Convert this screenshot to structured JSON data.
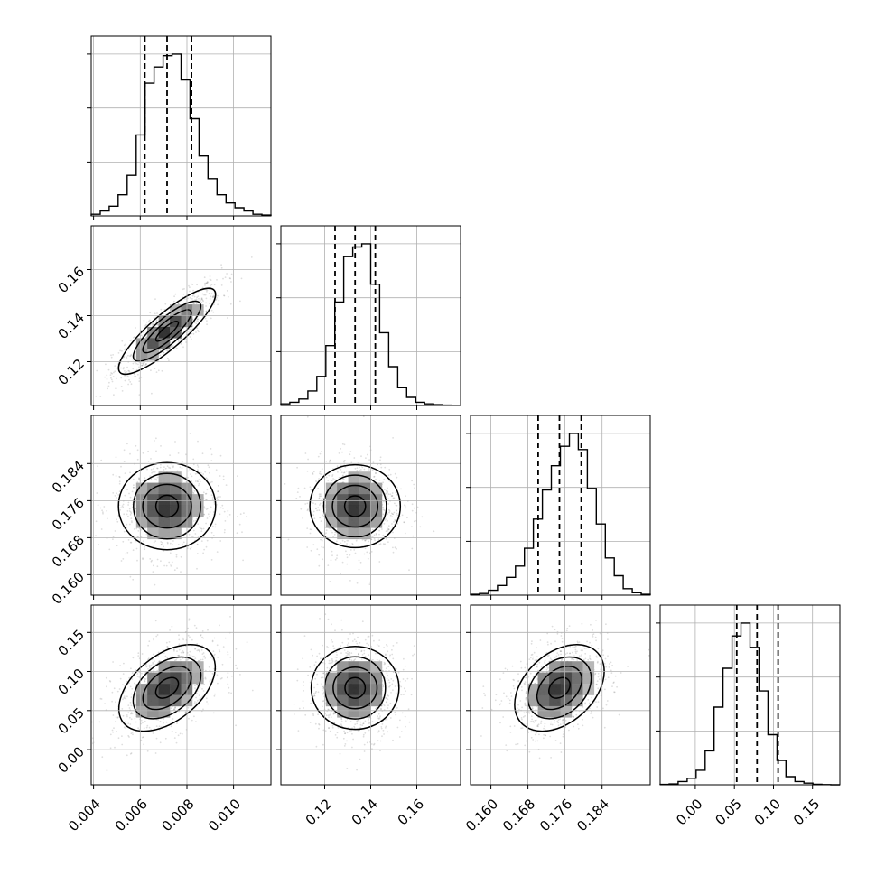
{
  "chart_data": {
    "type": "corner",
    "grid": true,
    "n_params": 4,
    "params": [
      {
        "range": [
          0.0039,
          0.0116
        ],
        "ticks": [
          0.004,
          0.006,
          0.008,
          0.01
        ],
        "tick_labels": [
          "0.004",
          "0.006",
          "0.008",
          "0.010"
        ],
        "quantiles": [
          0.0062,
          0.00715,
          0.0082
        ]
      },
      {
        "range": [
          0.101,
          0.179
        ],
        "ticks": [
          0.12,
          0.14,
          0.16
        ],
        "tick_labels": [
          "0.12",
          "0.14",
          "0.16"
        ],
        "quantiles": [
          0.1245,
          0.1332,
          0.142
        ]
      },
      {
        "range": [
          0.1556,
          0.1944
        ],
        "ticks": [
          0.16,
          0.168,
          0.176,
          0.184
        ],
        "tick_labels": [
          "0.160",
          "0.168",
          "0.176",
          "0.184"
        ],
        "quantiles": [
          0.1702,
          0.1748,
          0.1795
        ]
      },
      {
        "range": [
          -0.045,
          0.185
        ],
        "ticks": [
          0.0,
          0.05,
          0.1,
          0.15
        ],
        "tick_labels": [
          "0.00",
          "0.05",
          "0.10",
          "0.15"
        ],
        "quantiles": [
          0.053,
          0.079,
          0.106
        ]
      }
    ],
    "marginal_histograms": [
      {
        "param": 0,
        "counts": [
          1,
          3,
          6,
          13,
          25,
          50,
          82,
          92,
          99,
          100,
          84,
          60,
          37,
          23,
          13,
          8,
          5,
          3,
          1,
          0.5
        ]
      },
      {
        "param": 1,
        "counts": [
          1,
          2,
          4,
          9,
          18,
          37,
          64,
          92,
          98,
          100,
          75,
          45,
          24,
          11,
          5,
          2,
          1,
          0.5,
          0.2,
          0.1
        ]
      },
      {
        "param": 2,
        "counts": [
          0.5,
          1,
          3,
          6,
          11,
          18,
          29,
          47,
          65,
          80,
          92,
          100,
          90,
          66,
          44,
          23,
          12,
          4,
          1.5,
          0.5
        ]
      },
      {
        "param": 3,
        "counts": [
          0.2,
          0.5,
          2,
          4,
          9,
          21,
          48,
          72,
          92,
          100,
          85,
          58,
          31,
          15,
          5,
          2,
          1,
          0.3,
          0.1,
          0
        ]
      }
    ],
    "pair_summaries": [
      {
        "x_param": 0,
        "y_param": 1,
        "mean": [
          0.00715,
          0.1332
        ],
        "sd": [
          0.001,
          0.009
        ],
        "correlation": 0.85
      },
      {
        "x_param": 0,
        "y_param": 2,
        "mean": [
          0.00715,
          0.1748
        ],
        "sd": [
          0.001,
          0.0047
        ],
        "correlation": 0.0
      },
      {
        "x_param": 1,
        "y_param": 2,
        "mean": [
          0.1332,
          0.1748
        ],
        "sd": [
          0.009,
          0.0047
        ],
        "correlation": 0.0
      },
      {
        "x_param": 0,
        "y_param": 3,
        "mean": [
          0.00715,
          0.079
        ],
        "sd": [
          0.001,
          0.027
        ],
        "correlation": 0.45
      },
      {
        "x_param": 1,
        "y_param": 3,
        "mean": [
          0.1332,
          0.079
        ],
        "sd": [
          0.009,
          0.027
        ],
        "correlation": 0.0
      },
      {
        "x_param": 2,
        "y_param": 3,
        "mean": [
          0.1748,
          0.079
        ],
        "sd": [
          0.0047,
          0.027
        ],
        "correlation": 0.35
      }
    ],
    "contour_levels_sigma": [
      0.5,
      1.0,
      1.5,
      2.0
    ]
  }
}
